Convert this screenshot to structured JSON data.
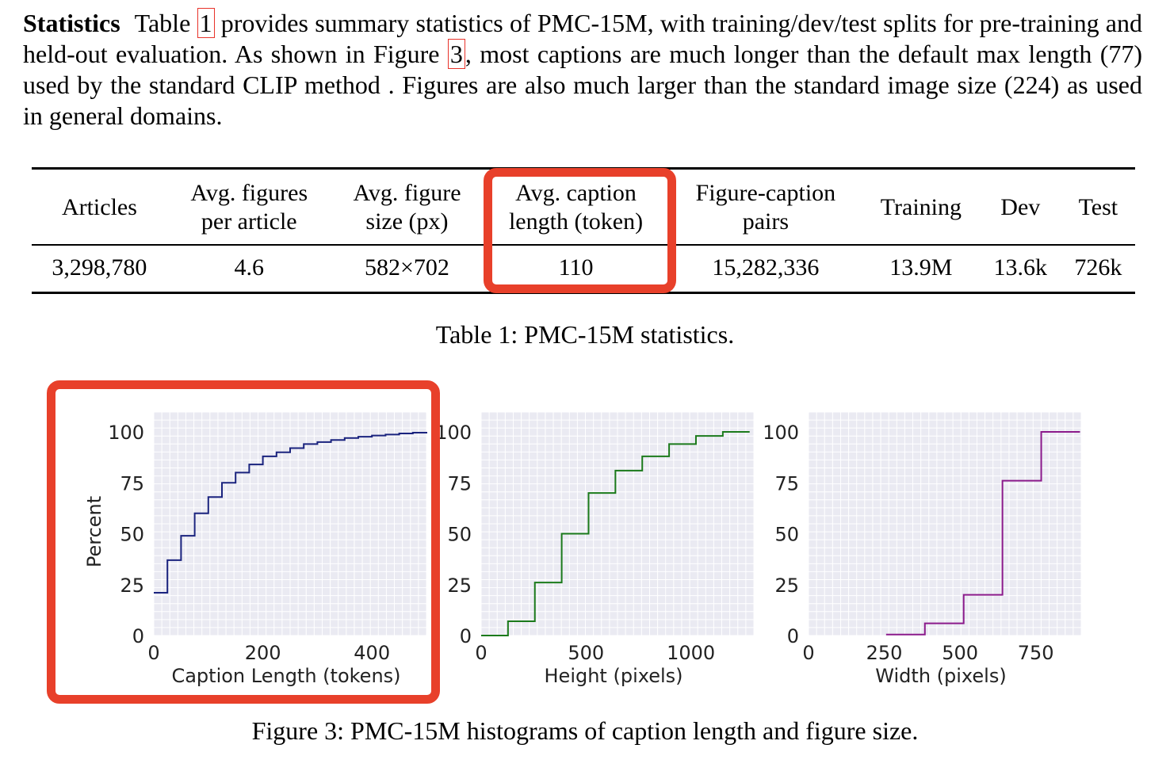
{
  "paragraph": {
    "heading": "Statistics",
    "text_1": "Table ",
    "ref_table": "1",
    "text_2": " provides summary statistics of PMC-15M, with training/dev/test splits for pre-training and held-out evaluation. As shown in Figure ",
    "ref_figure": "3",
    "text_3": ", most captions are much longer than the default max length (77) used by the standard CLIP method . Figures are also much larger than the standard image size (224) as used in general domains."
  },
  "table": {
    "headers": [
      [
        "Articles"
      ],
      [
        "Avg. figures",
        "per article"
      ],
      [
        "Avg. figure",
        "size (px)"
      ],
      [
        "Avg. caption",
        "length (token)"
      ],
      [
        "Figure-caption",
        "pairs"
      ],
      [
        "Training"
      ],
      [
        "Dev"
      ],
      [
        "Test"
      ]
    ],
    "row": [
      "3,298,780",
      "4.6",
      "582×702",
      "110",
      "15,282,336",
      "13.9M",
      "13.6k",
      "726k"
    ],
    "caption": "Table 1: PMC-15M statistics."
  },
  "figure_caption": "Figure 3: PMC-15M histograms of caption length and figure size.",
  "colors": {
    "highlight": "#e8402a",
    "plot_bg": "#eaeaf2"
  },
  "chart_data": [
    {
      "type": "line",
      "step": true,
      "ylabel": "Percent",
      "xlabel": "Caption Length (tokens)",
      "xlim": [
        0,
        500
      ],
      "ylim": [
        0,
        100
      ],
      "xticks": [
        0,
        200,
        400
      ],
      "yticks": [
        0,
        25,
        50,
        75,
        100
      ],
      "color": "#1a237e",
      "x": [
        0,
        25,
        50,
        75,
        100,
        125,
        150,
        175,
        200,
        225,
        250,
        275,
        300,
        325,
        350,
        375,
        400,
        425,
        450,
        475,
        500
      ],
      "y": [
        21,
        37,
        49,
        60,
        68,
        75,
        80,
        84,
        88,
        90,
        92,
        94,
        95,
        96,
        97,
        97.6,
        98.2,
        98.7,
        99.2,
        99.6,
        100
      ]
    },
    {
      "type": "line",
      "step": true,
      "ylabel": "",
      "xlabel": "Height (pixels)",
      "xlim": [
        0,
        1300
      ],
      "ylim": [
        0,
        100
      ],
      "xticks": [
        0,
        500,
        1000
      ],
      "yticks": [
        0,
        25,
        50,
        75,
        100
      ],
      "color": "#1b7a1b",
      "x": [
        0,
        128,
        256,
        384,
        512,
        640,
        768,
        896,
        1024,
        1152,
        1280
      ],
      "y": [
        0,
        7,
        26,
        50,
        70,
        81,
        88,
        94,
        98,
        100,
        100
      ]
    },
    {
      "type": "line",
      "step": true,
      "ylabel": "",
      "xlabel": "Width (pixels)",
      "xlim": [
        0,
        900
      ],
      "ylim": [
        0,
        100
      ],
      "xticks": [
        0,
        250,
        500,
        750
      ],
      "yticks": [
        0,
        25,
        50,
        75,
        100
      ],
      "color": "#8b1a8b",
      "x": [
        256,
        384,
        512,
        640,
        768,
        896
      ],
      "y": [
        0.5,
        6,
        20,
        76,
        100,
        100
      ]
    }
  ]
}
